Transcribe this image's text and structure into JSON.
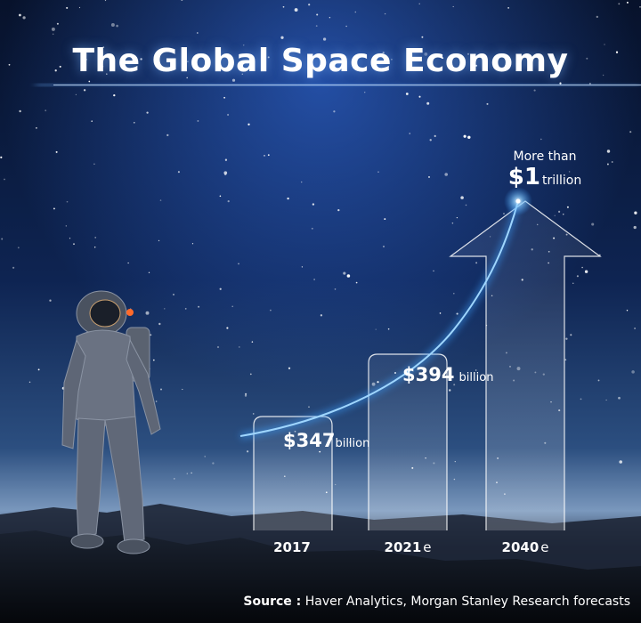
{
  "colors": {
    "sky_top": "#0a1a3a",
    "sky_bottom": "#5a7fa8",
    "glow": "#3aa0ff",
    "bar_outline": "#ffffff"
  },
  "chart_data": {
    "type": "bar",
    "title": "The Global Space Economy",
    "categories": [
      "2017",
      "2021e",
      "2040e"
    ],
    "category_labels": [
      {
        "year": "2017",
        "suffix": ""
      },
      {
        "year": "2021",
        "suffix": "e"
      },
      {
        "year": "2040",
        "suffix": "e"
      }
    ],
    "values": [
      347,
      394,
      1000
    ],
    "value_unit": "billion USD",
    "data_labels": [
      {
        "amount": "$347",
        "unit": "billion"
      },
      {
        "amount": "$394",
        "unit": "billion"
      },
      {
        "prefix": "More than",
        "amount": "$1",
        "unit": "trillion"
      }
    ],
    "trend_line": true,
    "source_label": "Source :",
    "source_text": "Haver Analytics, Morgan Stanley Research forecasts"
  }
}
